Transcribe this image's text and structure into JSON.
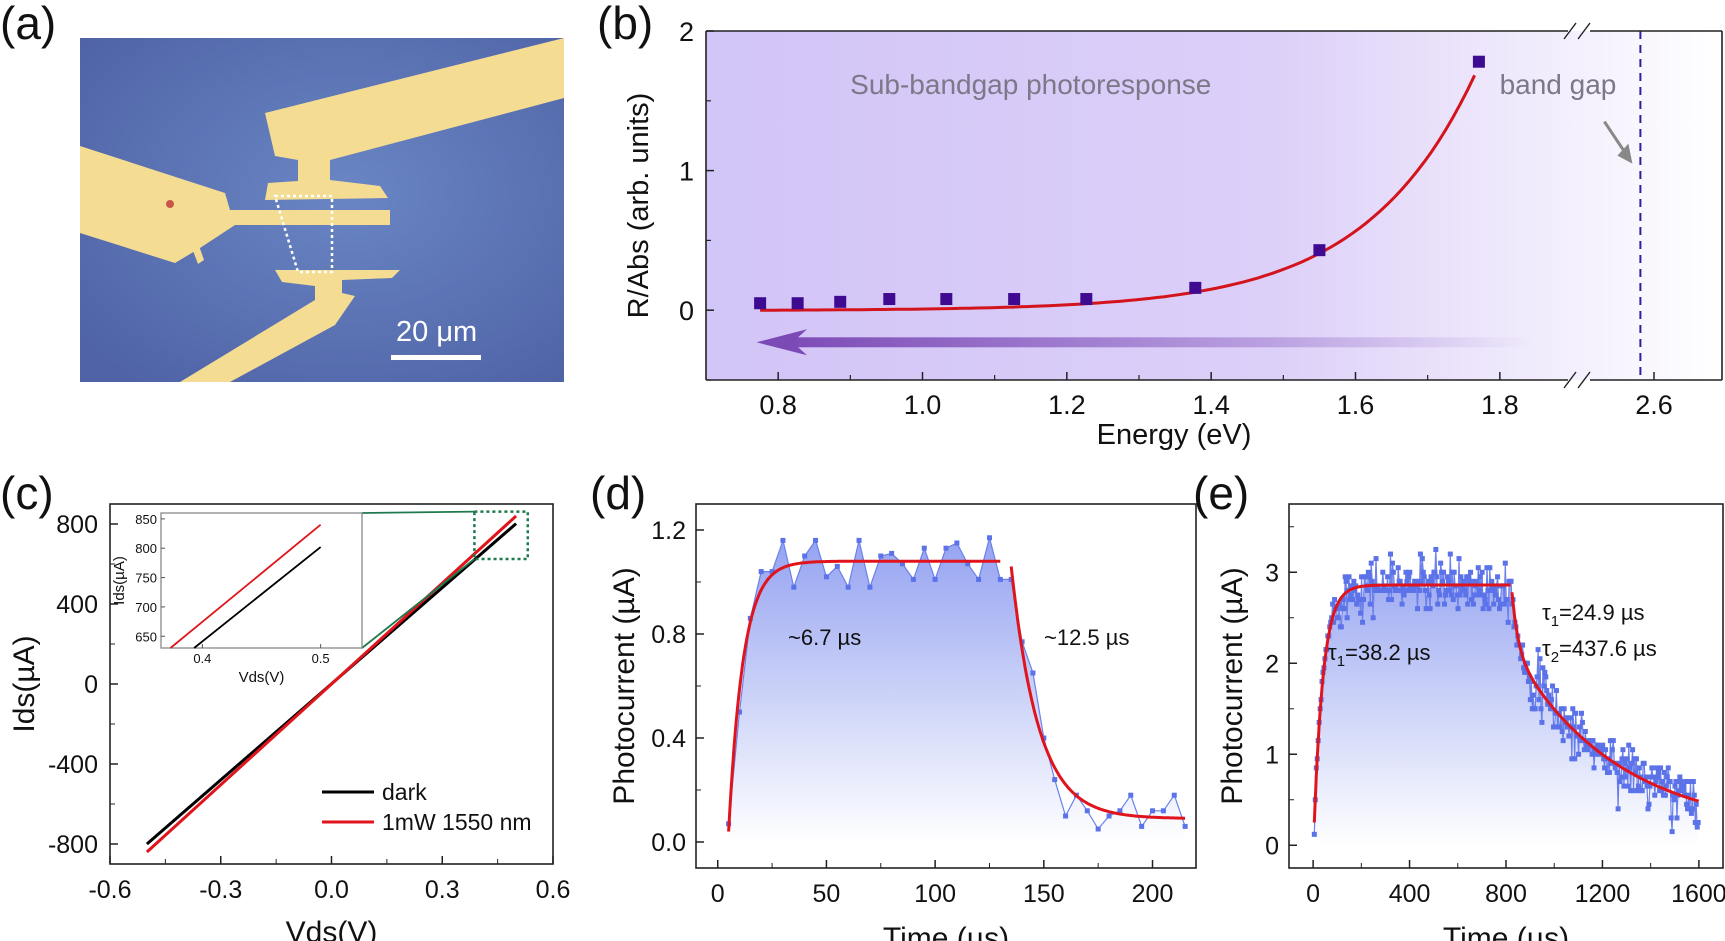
{
  "figure": {
    "panel_labels": [
      "(a)",
      "(b)",
      "(c)",
      "(d)",
      "(e)"
    ]
  },
  "panel_a": {
    "type": "optical micrograph",
    "scale_bar_label": "20 μm",
    "colors": {
      "substrate": "#5a72b0",
      "electrode": "#f4dc92",
      "outline": "#ffffff"
    }
  },
  "chart_data": [
    {
      "id": "b",
      "type": "scatter",
      "title": "",
      "xlabel": "Energy (eV)",
      "ylabel": "R/Abs (arb. units)",
      "xlim": [
        0.7,
        2.7
      ],
      "x_break": [
        1.9,
        2.5
      ],
      "ylim": [
        -0.5,
        2.0
      ],
      "xticks": [
        "0.8",
        "1.0",
        "1.2",
        "1.4",
        "1.6",
        "1.8",
        "2.6"
      ],
      "xtick_values": [
        0.8,
        1.0,
        1.2,
        1.4,
        1.6,
        1.8,
        2.6
      ],
      "yticks": [
        "0",
        "1",
        "2"
      ],
      "ytick_values": [
        0,
        1,
        2
      ],
      "series": [
        {
          "name": "R/Abs",
          "kind": "markers",
          "color": "#3d0a91",
          "x": [
            0.775,
            0.827,
            0.886,
            0.954,
            1.033,
            1.127,
            1.227,
            1.378,
            1.55,
            1.771
          ],
          "y": [
            0.05,
            0.05,
            0.06,
            0.08,
            0.08,
            0.08,
            0.08,
            0.16,
            0.43,
            1.78
          ]
        },
        {
          "name": "exponential fit",
          "kind": "line",
          "color": "#d4141c",
          "x": [
            0.775,
            0.9,
            1.0,
            1.1,
            1.2,
            1.3,
            1.378,
            1.45,
            1.55,
            1.65,
            1.771
          ],
          "y": [
            0.0,
            0.0,
            0.005,
            0.015,
            0.04,
            0.09,
            0.16,
            0.27,
            0.55,
            0.95,
            1.76
          ]
        }
      ],
      "annotations": [
        {
          "text": "Sub-bandgap photoresponse",
          "color": "#7d7888"
        },
        {
          "text": "band gap",
          "color": "#7d7888",
          "points_to_x": 2.58
        }
      ],
      "band_gap_x": 2.58,
      "arrow_direction": "toward lower energy",
      "colors": {
        "background_start": "#d2c5f7",
        "background_end": "#ffffff",
        "arrow": "#7b4ab5",
        "dashed_line": "#2a22a0"
      }
    },
    {
      "id": "c",
      "type": "line",
      "xlabel": "Vds(V)",
      "ylabel": "Ids(µA)",
      "xlim": [
        -0.6,
        0.6
      ],
      "ylim": [
        -900,
        900
      ],
      "xticks": [
        "-0.6",
        "-0.3",
        "0.0",
        "0.3",
        "0.6"
      ],
      "xtick_values": [
        -0.6,
        -0.3,
        0.0,
        0.3,
        0.6
      ],
      "yticks": [
        "800",
        "400",
        "0",
        "-400",
        "-800"
      ],
      "ytick_values": [
        800,
        400,
        0,
        -400,
        -800
      ],
      "legend_position": "bottom-right",
      "series": [
        {
          "name": "dark",
          "color": "#000000",
          "x": [
            -0.5,
            0.5
          ],
          "y": [
            -800,
            802
          ]
        },
        {
          "name": "1mW 1550 nm",
          "color": "#e0141c",
          "x": [
            -0.5,
            0.5
          ],
          "y": [
            -840,
            840
          ]
        }
      ],
      "inset": {
        "xlabel": "Vds(V)",
        "ylabel": "Ids(µA)",
        "xlim": [
          0.365,
          0.535
        ],
        "ylim": [
          630,
          860
        ],
        "xticks": [
          "0.4",
          "0.5"
        ],
        "xtick_values": [
          0.4,
          0.5
        ],
        "yticks": [
          "850",
          "800",
          "750",
          "700",
          "650"
        ],
        "ytick_values": [
          850,
          800,
          750,
          700,
          650
        ],
        "series": [
          {
            "name": "dark",
            "color": "#000000",
            "x": [
              0.393,
              0.5
            ],
            "y": [
              630,
              802
            ]
          },
          {
            "name": "1mW 1550 nm",
            "color": "#e0141c",
            "x": [
              0.373,
              0.5
            ],
            "y": [
              630,
              840
            ]
          }
        ],
        "zoom_box": {
          "x": [
            0.36,
            0.51
          ],
          "y": [
            625,
            862
          ]
        },
        "connector_color": "#1e7a4e"
      }
    },
    {
      "id": "d",
      "type": "line",
      "xlabel": "Time (µs)",
      "ylabel": "Photocurrent (µA)",
      "xlim": [
        -10,
        220
      ],
      "ylim": [
        -0.1,
        1.3
      ],
      "xticks": [
        "0",
        "50",
        "100",
        "150",
        "200"
      ],
      "xtick_values": [
        0,
        50,
        100,
        150,
        200
      ],
      "yticks": [
        "0.0",
        "0.4",
        "0.8",
        "1.2"
      ],
      "ytick_values": [
        0.0,
        0.4,
        0.8,
        1.2
      ],
      "series": [
        {
          "name": "measured",
          "kind": "line+markers+fill",
          "color": "#5b72e8",
          "x": [
            5,
            10,
            15,
            20,
            25,
            30,
            35,
            40,
            45,
            50,
            55,
            60,
            65,
            70,
            75,
            80,
            85,
            90,
            95,
            100,
            105,
            110,
            115,
            120,
            125,
            130,
            135,
            140,
            145,
            150,
            155,
            160,
            165,
            170,
            175,
            180,
            185,
            190,
            195,
            200,
            205,
            210,
            215
          ],
          "y": [
            0.07,
            0.5,
            0.86,
            1.04,
            1.04,
            1.16,
            0.98,
            1.1,
            1.16,
            1.02,
            1.06,
            0.98,
            1.16,
            0.98,
            1.1,
            1.11,
            1.07,
            1.01,
            1.13,
            1.01,
            1.13,
            1.15,
            1.07,
            1.01,
            1.17,
            1.01,
            1.01,
            0.77,
            0.65,
            0.4,
            0.24,
            0.1,
            0.18,
            0.12,
            0.05,
            0.1,
            0.12,
            0.18,
            0.06,
            0.12,
            0.12,
            0.18,
            0.06
          ]
        },
        {
          "name": "rise fit",
          "kind": "fit",
          "color": "#e0141c",
          "t0": 5,
          "t_end": 130,
          "y0": 0.04,
          "amplitude": 1.08,
          "tau": 6.7
        },
        {
          "name": "decay fit",
          "kind": "fit",
          "color": "#e0141c",
          "t0": 135,
          "t_end": 215,
          "y0": 1.06,
          "baseline": 0.09,
          "tau": 12.5
        }
      ],
      "annotations": [
        {
          "text": "~6.7 µs"
        },
        {
          "text": "~12.5 µs"
        }
      ]
    },
    {
      "id": "e",
      "type": "line",
      "xlabel": "Time (µs)",
      "ylabel": "Photocurrent (µA)",
      "xlim": [
        -100,
        1700
      ],
      "ylim": [
        -0.25,
        3.75
      ],
      "xticks": [
        "0",
        "400",
        "800",
        "1200",
        "1600"
      ],
      "xtick_values": [
        0,
        400,
        800,
        1200,
        1600
      ],
      "yticks": [
        "0",
        "1",
        "2",
        "3"
      ],
      "ytick_values": [
        0,
        1,
        2,
        3
      ],
      "series": [
        {
          "name": "measured",
          "kind": "line+markers+fill",
          "color": "#5b72e8",
          "noise_std": 0.15,
          "points_description": "≈400 noisy samples from 0 to 1600 µs following the fit curves"
        },
        {
          "name": "rise fit",
          "kind": "fit",
          "color": "#e0141c",
          "t0": 5,
          "t_end": 820,
          "y0": 0.25,
          "amplitude": 2.86,
          "tau": 38.2
        },
        {
          "name": "decay fit",
          "kind": "biexponential fit",
          "color": "#e0141c",
          "t0": 825,
          "t_end": 1600,
          "y0": 2.78,
          "tau1": 24.9,
          "tau2": 437.6,
          "a1": 0.62,
          "a2": 2.02,
          "baseline": 0.14
        }
      ],
      "annotations": [
        {
          "text_main": "τ",
          "sub": "1",
          "rest": "=38.2 µs"
        },
        {
          "text_main": "τ",
          "sub": "1",
          "rest": "=24.9 µs"
        },
        {
          "text_main": "τ",
          "sub": "2",
          "rest": "=437.6 µs"
        }
      ]
    }
  ]
}
